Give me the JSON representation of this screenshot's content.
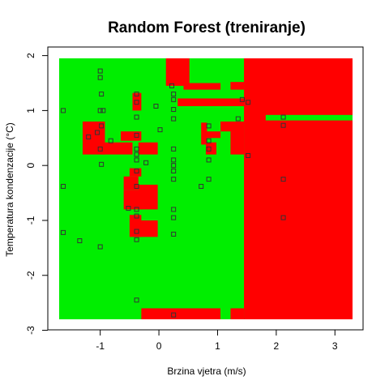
{
  "chart_data": {
    "type": "heatmap",
    "title": "Random Forest (treniranje)",
    "xlabel": "Brzina vjetra (m/s)",
    "ylabel": "Temperatura kondenzacije (°C)",
    "xlim": [
      -1.7,
      3.3
    ],
    "ylim": [
      -2.8,
      1.95
    ],
    "x_ticks": [
      -1,
      0,
      1,
      2,
      3
    ],
    "y_ticks": [
      -3,
      -2,
      -1,
      0,
      1,
      2
    ],
    "colors": {
      "class_a": "#00ee00",
      "class_b": "#ff0000",
      "points": "#333333",
      "frame": "#000000"
    },
    "background_class": "class_a",
    "regions": [
      {
        "class": "class_b",
        "x": [
          1.45,
          3.3
        ],
        "y": [
          -2.8,
          1.95
        ]
      },
      {
        "class": "class_b",
        "x": [
          0.12,
          0.52
        ],
        "y": [
          1.45,
          1.95
        ]
      },
      {
        "class": "class_b",
        "x": [
          0.42,
          1.05
        ],
        "y": [
          1.38,
          1.5
        ]
      },
      {
        "class": "class_b",
        "x": [
          1.22,
          1.45
        ],
        "y": [
          1.38,
          1.52
        ]
      },
      {
        "class": "class_b",
        "x": [
          0.32,
          1.45
        ],
        "y": [
          1.08,
          1.22
        ]
      },
      {
        "class": "class_b",
        "x": [
          -0.45,
          -0.3
        ],
        "y": [
          1.0,
          1.32
        ]
      },
      {
        "class": "class_b",
        "x": [
          -1.3,
          -0.92
        ],
        "y": [
          0.2,
          0.8
        ]
      },
      {
        "class": "class_b",
        "x": [
          -1.0,
          -0.45
        ],
        "y": [
          0.2,
          0.42
        ]
      },
      {
        "class": "class_b",
        "x": [
          -0.65,
          -0.3
        ],
        "y": [
          0.45,
          0.62
        ]
      },
      {
        "class": "class_b",
        "x": [
          -0.35,
          -0.02
        ],
        "y": [
          0.2,
          0.42
        ]
      },
      {
        "class": "class_b",
        "x": [
          0.72,
          0.82
        ],
        "y": [
          0.38,
          0.78
        ]
      },
      {
        "class": "class_b",
        "x": [
          0.8,
          1.05
        ],
        "y": [
          0.5,
          0.62
        ]
      },
      {
        "class": "class_b",
        "x": [
          0.8,
          0.98
        ],
        "y": [
          0.2,
          0.42
        ]
      },
      {
        "class": "class_b",
        "x": [
          1.22,
          1.45
        ],
        "y": [
          0.2,
          0.8
        ]
      },
      {
        "class": "class_b",
        "x": [
          1.05,
          1.28
        ],
        "y": [
          0.62,
          0.8
        ]
      },
      {
        "class": "class_b",
        "x": [
          -0.5,
          -0.3
        ],
        "y": [
          -0.2,
          -0.05
        ]
      },
      {
        "class": "class_b",
        "x": [
          -0.6,
          -0.35
        ],
        "y": [
          -0.45,
          -0.2
        ]
      },
      {
        "class": "class_b",
        "x": [
          -0.6,
          -0.28
        ],
        "y": [
          -0.8,
          -0.45
        ]
      },
      {
        "class": "class_b",
        "x": [
          -0.35,
          -0.02
        ],
        "y": [
          -0.8,
          -0.35
        ]
      },
      {
        "class": "class_b",
        "x": [
          -0.5,
          -0.3
        ],
        "y": [
          -1.3,
          -0.9
        ]
      },
      {
        "class": "class_b",
        "x": [
          -0.35,
          -0.02
        ],
        "y": [
          -1.3,
          -1.0
        ]
      },
      {
        "class": "class_b",
        "x": [
          -0.3,
          1.05
        ],
        "y": [
          -2.8,
          -2.6
        ]
      },
      {
        "class": "class_b",
        "x": [
          1.22,
          1.45
        ],
        "y": [
          -2.8,
          -2.6
        ]
      },
      {
        "class": "class_a",
        "x": [
          1.82,
          3.3
        ],
        "y": [
          0.82,
          0.92
        ]
      },
      {
        "class": "class_a",
        "x": [
          1.05,
          1.22
        ],
        "y": [
          -2.8,
          -2.6
        ]
      }
    ],
    "points": [
      {
        "x": -1.63,
        "y": 1.0
      },
      {
        "x": -1.0,
        "y": 1.72
      },
      {
        "x": -1.0,
        "y": 1.6
      },
      {
        "x": -0.98,
        "y": 1.3
      },
      {
        "x": -1.0,
        "y": 1.0
      },
      {
        "x": -0.95,
        "y": 1.0
      },
      {
        "x": -0.98,
        "y": 0.72
      },
      {
        "x": -1.05,
        "y": 0.6
      },
      {
        "x": -1.2,
        "y": 0.52
      },
      {
        "x": -0.82,
        "y": 0.45
      },
      {
        "x": -1.0,
        "y": 0.3
      },
      {
        "x": -0.98,
        "y": 0.02
      },
      {
        "x": -0.38,
        "y": 1.3
      },
      {
        "x": -0.38,
        "y": 1.15
      },
      {
        "x": -0.38,
        "y": 0.88
      },
      {
        "x": -0.38,
        "y": 0.55
      },
      {
        "x": -0.38,
        "y": 0.3
      },
      {
        "x": -0.38,
        "y": 0.2
      },
      {
        "x": -0.38,
        "y": 0.1
      },
      {
        "x": -0.22,
        "y": 0.05
      },
      {
        "x": -0.05,
        "y": 1.08
      },
      {
        "x": 0.02,
        "y": 0.65
      },
      {
        "x": 0.22,
        "y": 1.45
      },
      {
        "x": 0.25,
        "y": 1.3
      },
      {
        "x": 0.25,
        "y": 1.2
      },
      {
        "x": 0.25,
        "y": 1.02
      },
      {
        "x": 0.25,
        "y": 0.85
      },
      {
        "x": 0.25,
        "y": 0.3
      },
      {
        "x": 0.25,
        "y": 0.1
      },
      {
        "x": 0.25,
        "y": 0.0
      },
      {
        "x": 0.25,
        "y": -0.1
      },
      {
        "x": 0.25,
        "y": -0.25
      },
      {
        "x": 0.25,
        "y": -0.8
      },
      {
        "x": 0.25,
        "y": -0.95
      },
      {
        "x": 0.25,
        "y": -1.25
      },
      {
        "x": 0.25,
        "y": -2.72
      },
      {
        "x": 0.85,
        "y": 0.72
      },
      {
        "x": 0.85,
        "y": 0.45
      },
      {
        "x": 0.85,
        "y": 0.3
      },
      {
        "x": 0.85,
        "y": 0.1
      },
      {
        "x": 0.85,
        "y": -0.25
      },
      {
        "x": 0.72,
        "y": -0.38
      },
      {
        "x": 1.42,
        "y": 1.2
      },
      {
        "x": 1.52,
        "y": 1.15
      },
      {
        "x": 1.52,
        "y": 0.18
      },
      {
        "x": 1.35,
        "y": 0.85
      },
      {
        "x": 2.12,
        "y": 0.88
      },
      {
        "x": 2.12,
        "y": 0.73
      },
      {
        "x": 2.12,
        "y": -0.25
      },
      {
        "x": 2.12,
        "y": -0.95
      },
      {
        "x": -1.63,
        "y": -0.38
      },
      {
        "x": -1.63,
        "y": -1.22
      },
      {
        "x": -1.35,
        "y": -1.37
      },
      {
        "x": -1.0,
        "y": -1.48
      },
      {
        "x": -0.38,
        "y": -0.1
      },
      {
        "x": -0.38,
        "y": -0.38
      },
      {
        "x": -0.38,
        "y": -0.8
      },
      {
        "x": -0.38,
        "y": -0.92
      },
      {
        "x": -0.38,
        "y": -1.2
      },
      {
        "x": -0.38,
        "y": -1.35
      },
      {
        "x": -0.52,
        "y": -0.78
      },
      {
        "x": -0.38,
        "y": -2.45
      }
    ]
  }
}
